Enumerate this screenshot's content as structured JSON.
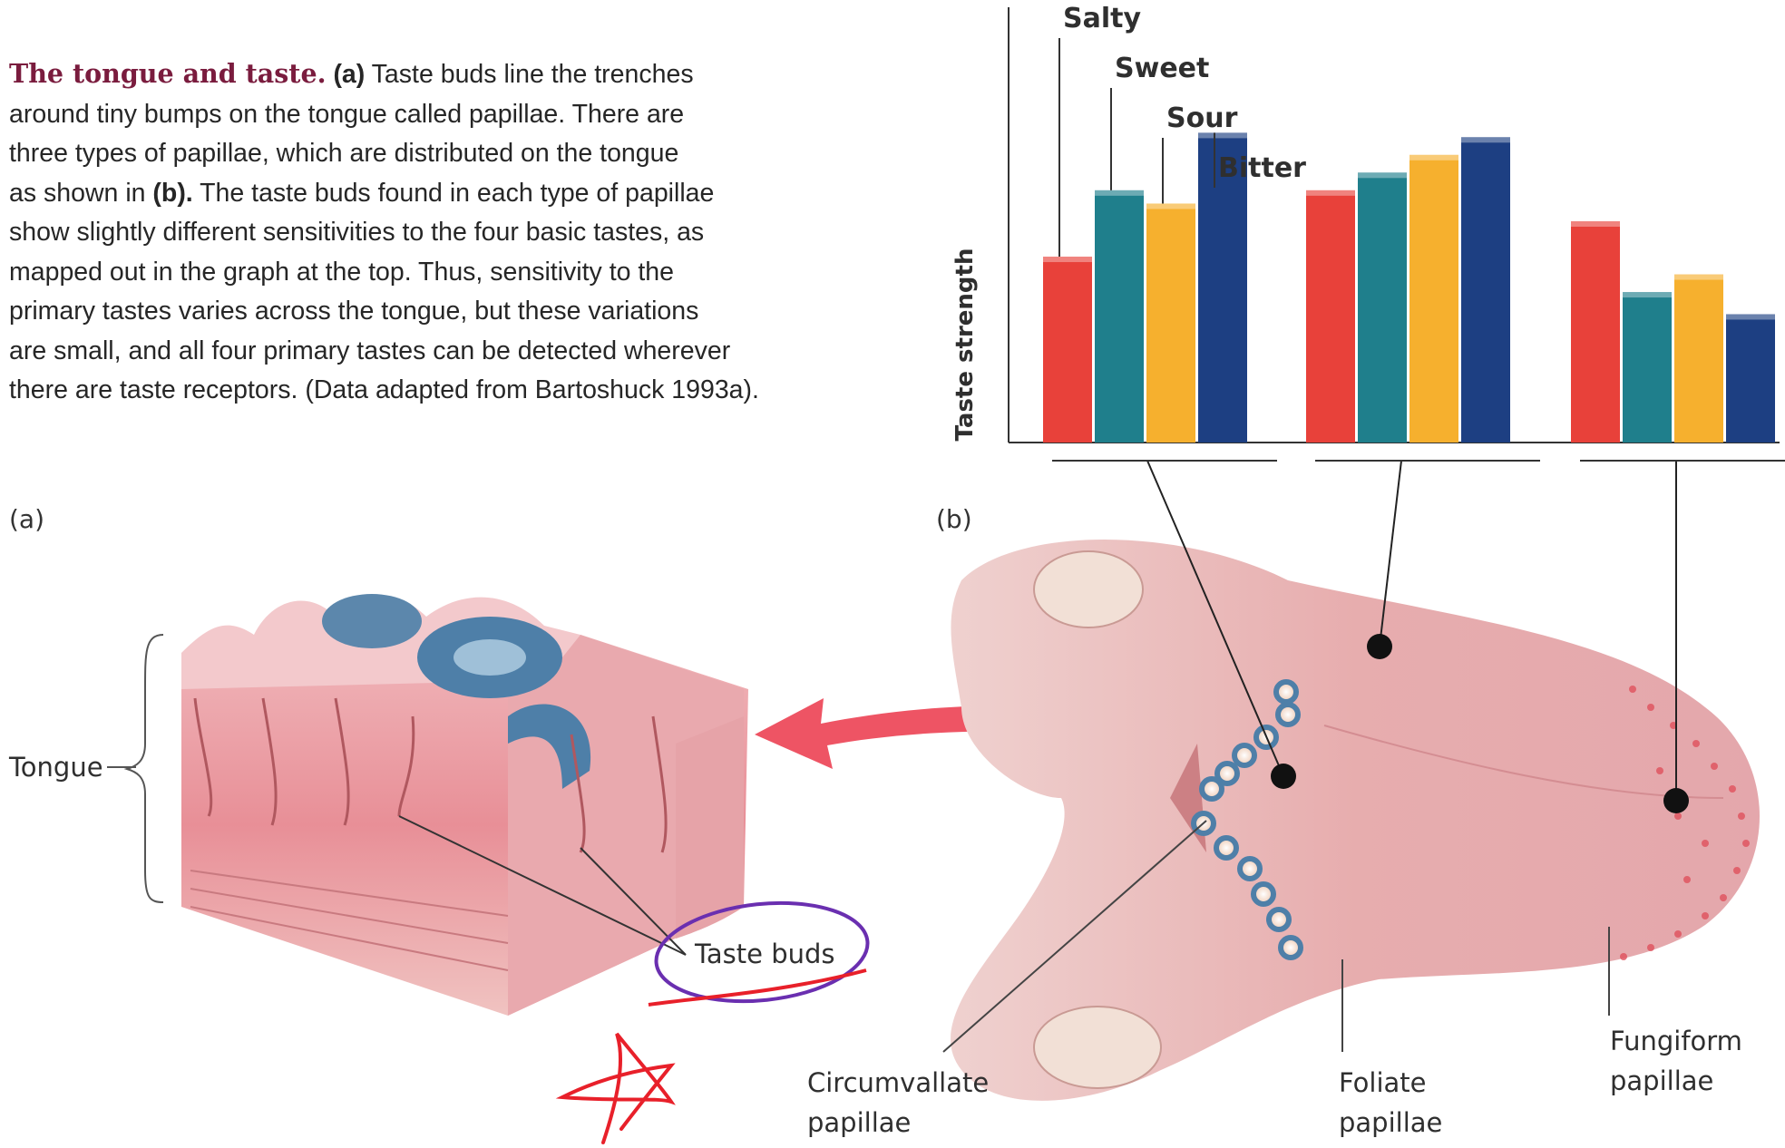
{
  "caption": {
    "title": "The tongue and taste.",
    "lines": [
      " Taste buds line the trenches",
      "around tiny bumps on the tongue called papillae. There are",
      "three types of papillae, which are distributed on the tongue",
      "as shown in ",
      " The taste buds found in each type of papillae",
      "show slightly different sensitivities to the four basic tastes, as",
      "mapped out in the graph at the top. Thus, sensitivity to the",
      "primary tastes varies across the tongue, but these variations",
      "are small, and all four primary tastes can be detected wherever",
      "there are taste receptors. (Data adapted from Bartoshuck 1993a)."
    ],
    "ref_a": "(a)",
    "ref_b": "(b)."
  },
  "panels": {
    "a": "(a)",
    "b": "(b)"
  },
  "labels": {
    "tongue": "Tongue",
    "taste_buds": "Taste buds",
    "circumvallate": [
      "Circumvallate",
      "papillae"
    ],
    "foliate": [
      "Foliate",
      "papillae"
    ],
    "fungiform": [
      "Fungiform",
      "papillae"
    ]
  },
  "colors": {
    "salty": "#e8413a",
    "sweet": "#1f7f8c",
    "sour": "#f6b02e",
    "bitter": "#1d3f82",
    "arrow": "#ee5464",
    "tongue": "#e9b4b4",
    "annotation_purple": "#6a2fb0",
    "annotation_red": "#e8202a"
  },
  "chart_data": {
    "type": "bar",
    "ylabel": "Taste strength",
    "series": [
      {
        "name": "Salty",
        "values": [
          42,
          57,
          50
        ]
      },
      {
        "name": "Sweet",
        "values": [
          57,
          61,
          34
        ]
      },
      {
        "name": "Sour",
        "values": [
          54,
          65,
          38
        ]
      },
      {
        "name": "Bitter",
        "values": [
          70,
          69,
          29
        ]
      }
    ],
    "categories": [
      "",
      "",
      ""
    ],
    "ylim": [
      0,
      100
    ],
    "grid": false,
    "legend": "leader-lines-top-left"
  }
}
